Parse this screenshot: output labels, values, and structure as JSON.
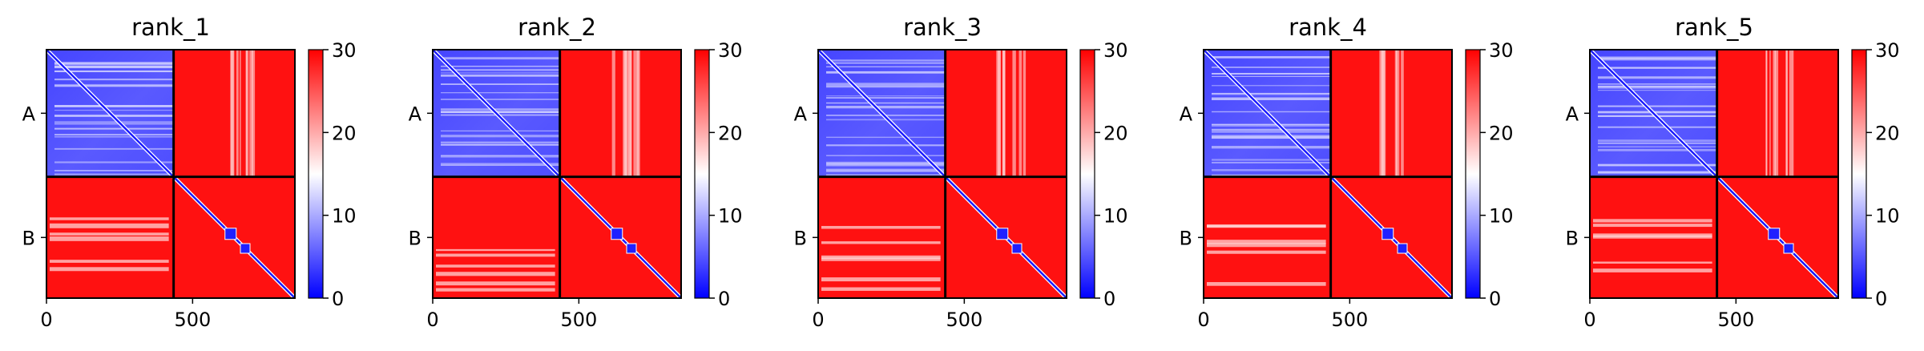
{
  "figure": {
    "colormap": {
      "name": "bwr",
      "vmin": 0,
      "vmax": 30,
      "low_color": "#0000ff",
      "mid_color": "#ffffff",
      "high_color": "#ff0000"
    }
  },
  "chart_data": [
    {
      "type": "heatmap",
      "title": "rank_1",
      "xlim": [
        0,
        850
      ],
      "x_ticks": [
        0,
        500
      ],
      "y_tick_labels": [
        "A",
        "B"
      ],
      "chain_lengths": [
        435,
        415
      ],
      "colorbar": {
        "ticks": [
          0,
          10,
          20,
          30
        ],
        "range": [
          0,
          30
        ]
      },
      "block_mean_values": {
        "A-A": 6,
        "A-B": 29,
        "B-A": 29,
        "B-B": 29
      }
    },
    {
      "type": "heatmap",
      "title": "rank_2",
      "xlim": [
        0,
        850
      ],
      "x_ticks": [
        0,
        500
      ],
      "y_tick_labels": [
        "A",
        "B"
      ],
      "chain_lengths": [
        435,
        415
      ],
      "colorbar": {
        "ticks": [
          0,
          10,
          20,
          30
        ],
        "range": [
          0,
          30
        ]
      },
      "block_mean_values": {
        "A-A": 6,
        "A-B": 29,
        "B-A": 29,
        "B-B": 29
      }
    },
    {
      "type": "heatmap",
      "title": "rank_3",
      "xlim": [
        0,
        850
      ],
      "x_ticks": [
        0,
        500
      ],
      "y_tick_labels": [
        "A",
        "B"
      ],
      "chain_lengths": [
        435,
        415
      ],
      "colorbar": {
        "ticks": [
          0,
          10,
          20,
          30
        ],
        "range": [
          0,
          30
        ]
      },
      "block_mean_values": {
        "A-A": 6,
        "A-B": 29,
        "B-A": 29,
        "B-B": 29
      }
    },
    {
      "type": "heatmap",
      "title": "rank_4",
      "xlim": [
        0,
        850
      ],
      "x_ticks": [
        0,
        500
      ],
      "y_tick_labels": [
        "A",
        "B"
      ],
      "chain_lengths": [
        435,
        415
      ],
      "colorbar": {
        "ticks": [
          0,
          10,
          20,
          30
        ],
        "range": [
          0,
          30
        ]
      },
      "block_mean_values": {
        "A-A": 6,
        "A-B": 29,
        "B-A": 29,
        "B-B": 29
      }
    },
    {
      "type": "heatmap",
      "title": "rank_5",
      "xlim": [
        0,
        850
      ],
      "x_ticks": [
        0,
        500
      ],
      "y_tick_labels": [
        "A",
        "B"
      ],
      "chain_lengths": [
        435,
        415
      ],
      "colorbar": {
        "ticks": [
          0,
          10,
          20,
          30
        ],
        "range": [
          0,
          30
        ]
      },
      "block_mean_values": {
        "A-A": 6,
        "A-B": 29,
        "B-A": 29,
        "B-B": 29
      }
    }
  ]
}
